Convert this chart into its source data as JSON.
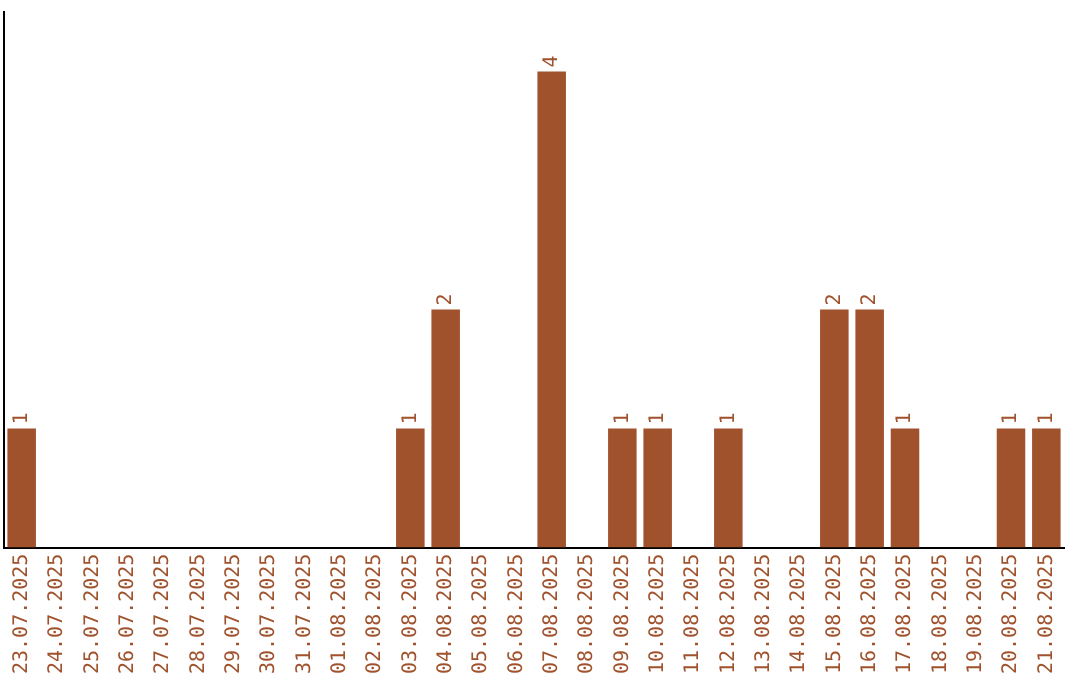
{
  "chart_data": {
    "type": "bar",
    "categories": [
      "23.07.2025",
      "24.07.2025",
      "25.07.2025",
      "26.07.2025",
      "27.07.2025",
      "28.07.2025",
      "29.07.2025",
      "30.07.2025",
      "31.07.2025",
      "01.08.2025",
      "02.08.2025",
      "03.08.2025",
      "04.08.2025",
      "05.08.2025",
      "06.08.2025",
      "07.08.2025",
      "08.08.2025",
      "09.08.2025",
      "10.08.2025",
      "11.08.2025",
      "12.08.2025",
      "13.08.2025",
      "14.08.2025",
      "15.08.2025",
      "16.08.2025",
      "17.08.2025",
      "18.08.2025",
      "19.08.2025",
      "20.08.2025",
      "21.08.2025"
    ],
    "values": [
      1,
      0,
      0,
      0,
      0,
      0,
      0,
      0,
      0,
      0,
      0,
      1,
      2,
      0,
      0,
      4,
      0,
      1,
      1,
      0,
      1,
      0,
      0,
      2,
      2,
      1,
      0,
      0,
      1,
      1
    ],
    "value_labels": [
      "1",
      null,
      null,
      null,
      null,
      null,
      null,
      null,
      null,
      null,
      null,
      "1",
      "2",
      null,
      null,
      "4",
      null,
      "1",
      "1",
      null,
      "1",
      null,
      null,
      "2",
      "2",
      "1",
      null,
      null,
      "1",
      "1"
    ],
    "color": "#a0522d",
    "grid": false,
    "legend": false
  }
}
